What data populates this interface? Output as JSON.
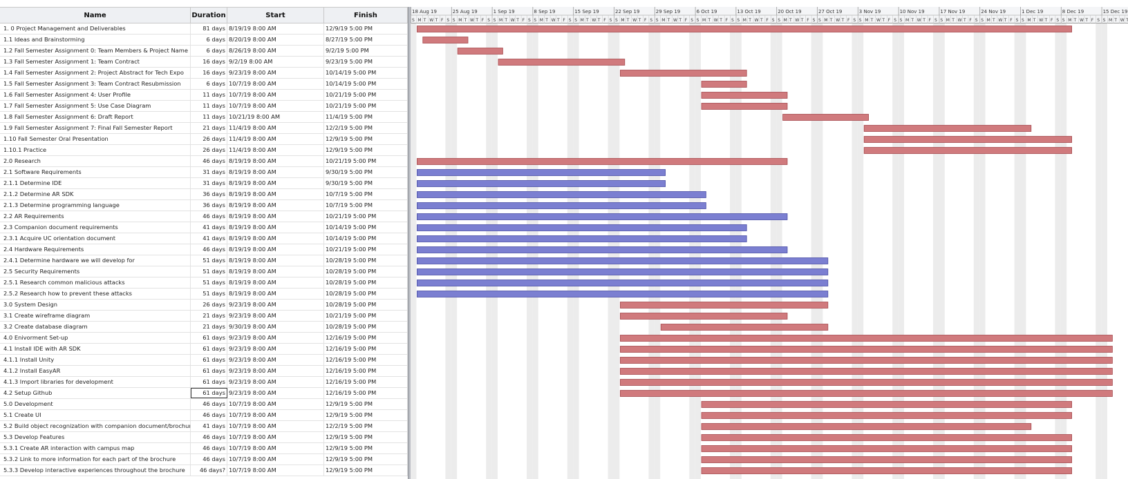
{
  "columns": {
    "name": "Name",
    "duration": "Duration",
    "start": "Start",
    "finish": "Finish"
  },
  "timeline": {
    "weeks": [
      "18 Aug 19",
      "25 Aug 19",
      "1 Sep 19",
      "8 Sep 19",
      "15 Sep 19",
      "22 Sep 19",
      "29 Sep 19",
      "6 Oct 19",
      "13 Oct 19",
      "20 Oct 19",
      "27 Oct 19",
      "3 Nov 19",
      "10 Nov 19",
      "17 Nov 19",
      "24 Nov 19",
      "1 Dec 19",
      "8 Dec 19",
      "15 Dec 19"
    ],
    "day_letters": [
      "S",
      "M",
      "T",
      "W",
      "T",
      "F",
      "S"
    ],
    "origin_date": "2019-08-18",
    "colors": {
      "summary_bar": "#d07a7d",
      "research_bar": "#7b7fd1",
      "weekend_shade": "#ececec",
      "bar_border": "#a64a4e",
      "research_border": "#4a4ea6"
    }
  },
  "tasks": [
    {
      "name": "1. 0 Project Management and Deliverables",
      "duration": "81 days",
      "start": "8/19/19 8:00 AM",
      "finish": "12/9/19 5:00 PM",
      "bar_start": "2019-08-19",
      "bar_end": "2019-12-09",
      "color": "red"
    },
    {
      "name": "1.1 Ideas and Brainstorming",
      "duration": "6 days",
      "start": "8/20/19 8:00 AM",
      "finish": "8/27/19 5:00 PM",
      "bar_start": "2019-08-20",
      "bar_end": "2019-08-27",
      "color": "red"
    },
    {
      "name": "1.2 Fall Semester Assignment 0: Team Members & Project Name",
      "duration": "6 days",
      "start": "8/26/19 8:00 AM",
      "finish": "9/2/19 5:00 PM",
      "bar_start": "2019-08-26",
      "bar_end": "2019-09-02",
      "color": "red"
    },
    {
      "name": "1.3 Fall Semester Assignment 1: Team Contract",
      "duration": "16 days",
      "start": "9/2/19 8:00 AM",
      "finish": "9/23/19 5:00 PM",
      "bar_start": "2019-09-02",
      "bar_end": "2019-09-23",
      "color": "red"
    },
    {
      "name": "1.4 Fall Semester Assignment 2: Project Abstract for Tech Expo",
      "duration": "16 days",
      "start": "9/23/19 8:00 AM",
      "finish": "10/14/19 5:00 PM",
      "bar_start": "2019-09-23",
      "bar_end": "2019-10-14",
      "color": "red"
    },
    {
      "name": "1.5 Fall Semester Assignment 3: Team Contract Resubmission",
      "duration": "6 days",
      "start": "10/7/19 8:00 AM",
      "finish": "10/14/19 5:00 PM",
      "bar_start": "2019-10-07",
      "bar_end": "2019-10-14",
      "color": "red"
    },
    {
      "name": "1.6 Fall Semester Assignment 4: User Profile",
      "duration": "11 days",
      "start": "10/7/19 8:00 AM",
      "finish": "10/21/19 5:00 PM",
      "bar_start": "2019-10-07",
      "bar_end": "2019-10-21",
      "color": "red"
    },
    {
      "name": "1.7 Fall Semester Assignment 5: Use Case Diagram",
      "duration": "11 days",
      "start": "10/7/19 8:00 AM",
      "finish": "10/21/19 5:00 PM",
      "bar_start": "2019-10-07",
      "bar_end": "2019-10-21",
      "color": "red"
    },
    {
      "name": "1.8 Fall Semester Assignment 6: Draft Report",
      "duration": "11 days",
      "start": "10/21/19 8:00 AM",
      "finish": "11/4/19 5:00 PM",
      "bar_start": "2019-10-21",
      "bar_end": "2019-11-04",
      "color": "red"
    },
    {
      "name": "1.9 Fall Semester Assignment 7: Final Fall Semester Report",
      "duration": "21 days",
      "start": "11/4/19 8:00 AM",
      "finish": "12/2/19 5:00 PM",
      "bar_start": "2019-11-04",
      "bar_end": "2019-12-02",
      "color": "red"
    },
    {
      "name": "1.10 Fall Semester Oral Presentation",
      "duration": "26 days",
      "start": "11/4/19 8:00 AM",
      "finish": "12/9/19 5:00 PM",
      "bar_start": "2019-11-04",
      "bar_end": "2019-12-09",
      "color": "red"
    },
    {
      "name": "1.10.1 Practice",
      "duration": "26 days",
      "start": "11/4/19 8:00 AM",
      "finish": "12/9/19 5:00 PM",
      "bar_start": "2019-11-04",
      "bar_end": "2019-12-09",
      "color": "red"
    },
    {
      "name": "2.0 Research",
      "duration": "46 days",
      "start": "8/19/19 8:00 AM",
      "finish": "10/21/19 5:00 PM",
      "bar_start": "2019-08-19",
      "bar_end": "2019-10-21",
      "color": "red"
    },
    {
      "name": "2.1 Software Requirements",
      "duration": "31 days",
      "start": "8/19/19 8:00 AM",
      "finish": "9/30/19 5:00 PM",
      "bar_start": "2019-08-19",
      "bar_end": "2019-09-30",
      "color": "blue"
    },
    {
      "name": "2.1.1 Determine IDE",
      "duration": "31 days",
      "start": "8/19/19 8:00 AM",
      "finish": "9/30/19 5:00 PM",
      "bar_start": "2019-08-19",
      "bar_end": "2019-09-30",
      "color": "blue"
    },
    {
      "name": "2.1.2 Determine AR SDK",
      "duration": "36 days",
      "start": "8/19/19 8:00 AM",
      "finish": "10/7/19 5:00 PM",
      "bar_start": "2019-08-19",
      "bar_end": "2019-10-07",
      "color": "blue"
    },
    {
      "name": "2.1.3 Determine programming language",
      "duration": "36 days",
      "start": "8/19/19 8:00 AM",
      "finish": "10/7/19 5:00 PM",
      "bar_start": "2019-08-19",
      "bar_end": "2019-10-07",
      "color": "blue"
    },
    {
      "name": "2.2 AR Requirements",
      "duration": "46 days",
      "start": "8/19/19 8:00 AM",
      "finish": "10/21/19 5:00 PM",
      "bar_start": "2019-08-19",
      "bar_end": "2019-10-21",
      "color": "blue"
    },
    {
      "name": "2.3 Companion document requirements",
      "duration": "41 days",
      "start": "8/19/19 8:00 AM",
      "finish": "10/14/19 5:00 PM",
      "bar_start": "2019-08-19",
      "bar_end": "2019-10-14",
      "color": "blue"
    },
    {
      "name": "2.3.1 Acquire UC orientation document",
      "duration": "41 days",
      "start": "8/19/19 8:00 AM",
      "finish": "10/14/19 5:00 PM",
      "bar_start": "2019-08-19",
      "bar_end": "2019-10-14",
      "color": "blue"
    },
    {
      "name": "2.4 Hardware Requirements",
      "duration": "46 days",
      "start": "8/19/19 8:00 AM",
      "finish": "10/21/19 5:00 PM",
      "bar_start": "2019-08-19",
      "bar_end": "2019-10-21",
      "color": "blue"
    },
    {
      "name": "2.4.1 Determine hardware we will develop for",
      "duration": "51 days",
      "start": "8/19/19 8:00 AM",
      "finish": "10/28/19 5:00 PM",
      "bar_start": "2019-08-19",
      "bar_end": "2019-10-28",
      "color": "blue"
    },
    {
      "name": "2.5 Security Requirements",
      "duration": "51 days",
      "start": "8/19/19 8:00 AM",
      "finish": "10/28/19 5:00 PM",
      "bar_start": "2019-08-19",
      "bar_end": "2019-10-28",
      "color": "blue"
    },
    {
      "name": "2.5.1 Research common malicious attacks",
      "duration": "51 days",
      "start": "8/19/19 8:00 AM",
      "finish": "10/28/19 5:00 PM",
      "bar_start": "2019-08-19",
      "bar_end": "2019-10-28",
      "color": "blue"
    },
    {
      "name": "2.5.2 Research how to prevent these attacks",
      "duration": "51 days",
      "start": "8/19/19 8:00 AM",
      "finish": "10/28/19 5:00 PM",
      "bar_start": "2019-08-19",
      "bar_end": "2019-10-28",
      "color": "blue"
    },
    {
      "name": "3.0 System Design",
      "duration": "26 days",
      "start": "9/23/19 8:00 AM",
      "finish": "10/28/19 5:00 PM",
      "bar_start": "2019-09-23",
      "bar_end": "2019-10-28",
      "color": "red"
    },
    {
      "name": "3.1 Create wireframe diagram",
      "duration": "21 days",
      "start": "9/23/19 8:00 AM",
      "finish": "10/21/19 5:00 PM",
      "bar_start": "2019-09-23",
      "bar_end": "2019-10-21",
      "color": "red"
    },
    {
      "name": "3.2 Create database diagram",
      "duration": "21 days",
      "start": "9/30/19 8:00 AM",
      "finish": "10/28/19 5:00 PM",
      "bar_start": "2019-09-30",
      "bar_end": "2019-10-28",
      "color": "red"
    },
    {
      "name": "4.0 Enivorment Set-up",
      "duration": "61 days",
      "start": "9/23/19 8:00 AM",
      "finish": "12/16/19 5:00 PM",
      "bar_start": "2019-09-23",
      "bar_end": "2019-12-16",
      "color": "red"
    },
    {
      "name": "4.1 Install IDE with AR SDK",
      "duration": "61 days",
      "start": "9/23/19 8:00 AM",
      "finish": "12/16/19 5:00 PM",
      "bar_start": "2019-09-23",
      "bar_end": "2019-12-16",
      "color": "red"
    },
    {
      "name": "4.1.1 Install Unity",
      "duration": "61 days",
      "start": "9/23/19 8:00 AM",
      "finish": "12/16/19 5:00 PM",
      "bar_start": "2019-09-23",
      "bar_end": "2019-12-16",
      "color": "red"
    },
    {
      "name": "4.1.2 Install EasyAR",
      "duration": "61 days",
      "start": "9/23/19 8:00 AM",
      "finish": "12/16/19 5:00 PM",
      "bar_start": "2019-09-23",
      "bar_end": "2019-12-16",
      "color": "red"
    },
    {
      "name": "4.1.3 Import libraries for development",
      "duration": "61 days",
      "start": "9/23/19 8:00 AM",
      "finish": "12/16/19 5:00 PM",
      "bar_start": "2019-09-23",
      "bar_end": "2019-12-16",
      "color": "red"
    },
    {
      "name": "4.2 Setup Github",
      "duration": "61 days",
      "start": "9/23/19 8:00 AM",
      "finish": "12/16/19 5:00 PM",
      "bar_start": "2019-09-23",
      "bar_end": "2019-12-16",
      "color": "red",
      "selected": true
    },
    {
      "name": "5.0 Development",
      "duration": "46 days",
      "start": "10/7/19 8:00 AM",
      "finish": "12/9/19 5:00 PM",
      "bar_start": "2019-10-07",
      "bar_end": "2019-12-09",
      "color": "red"
    },
    {
      "name": "5.1 Create UI",
      "duration": "46 days",
      "start": "10/7/19 8:00 AM",
      "finish": "12/9/19 5:00 PM",
      "bar_start": "2019-10-07",
      "bar_end": "2019-12-09",
      "color": "red"
    },
    {
      "name": "5.2 Build object recognization with companion document/brochure",
      "duration": "41 days",
      "start": "10/7/19 8:00 AM",
      "finish": "12/2/19 5:00 PM",
      "bar_start": "2019-10-07",
      "bar_end": "2019-12-02",
      "color": "red"
    },
    {
      "name": "5.3 Develop Features",
      "duration": "46 days",
      "start": "10/7/19 8:00 AM",
      "finish": "12/9/19 5:00 PM",
      "bar_start": "2019-10-07",
      "bar_end": "2019-12-09",
      "color": "red"
    },
    {
      "name": "5.3.1 Create AR interaction with campus map",
      "duration": "46 days",
      "start": "10/7/19 8:00 AM",
      "finish": "12/9/19 5:00 PM",
      "bar_start": "2019-10-07",
      "bar_end": "2019-12-09",
      "color": "red"
    },
    {
      "name": "5.3.2 Link to more information for each part of the brochure",
      "duration": "46 days",
      "start": "10/7/19 8:00 AM",
      "finish": "12/9/19 5:00 PM",
      "bar_start": "2019-10-07",
      "bar_end": "2019-12-09",
      "color": "red"
    },
    {
      "name": "5.3.3 Develop interactive experiences throughout the brochure",
      "duration": "46 days?",
      "start": "10/7/19 8:00 AM",
      "finish": "12/9/19 5:00 PM",
      "bar_start": "2019-10-07",
      "bar_end": "2019-12-09",
      "color": "red"
    }
  ]
}
